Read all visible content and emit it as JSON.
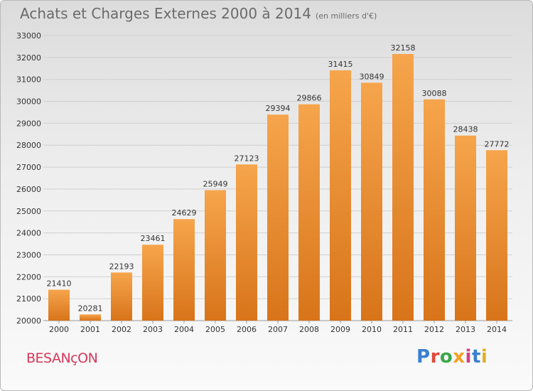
{
  "header": {
    "title": "Achats et Charges Externes 2000 à 2014",
    "unit": "(en milliers d'€)"
  },
  "footer": {
    "city": "BESANçON",
    "logo": "Proxiti",
    "logo_letter_colors": [
      "#3a7fd0",
      "#e04a3a",
      "#3aa84a",
      "#f2a020",
      "#d04080",
      "#3a7fd0",
      "#e0b020"
    ]
  },
  "colors": {
    "bar_light": "#f6a54c",
    "bar_dark": "#d8741a",
    "grid": "#d0d0d0"
  },
  "chart_data": {
    "type": "bar",
    "title": "Achats et Charges Externes 2000 à 2014",
    "subtitle": "(en milliers d'€)",
    "xlabel": "",
    "ylabel": "",
    "categories": [
      "2000",
      "2001",
      "2002",
      "2003",
      "2004",
      "2005",
      "2006",
      "2007",
      "2008",
      "2009",
      "2010",
      "2011",
      "2012",
      "2013",
      "2014"
    ],
    "values": [
      21410,
      20281,
      22193,
      23461,
      24629,
      25949,
      27123,
      29394,
      29866,
      31415,
      30849,
      32158,
      30088,
      28438,
      27772
    ],
    "ylim": [
      20000,
      33000
    ],
    "yticks": [
      20000,
      21000,
      22000,
      23000,
      24000,
      25000,
      26000,
      27000,
      28000,
      29000,
      30000,
      31000,
      32000,
      33000
    ],
    "grid": true,
    "legend": "none"
  }
}
